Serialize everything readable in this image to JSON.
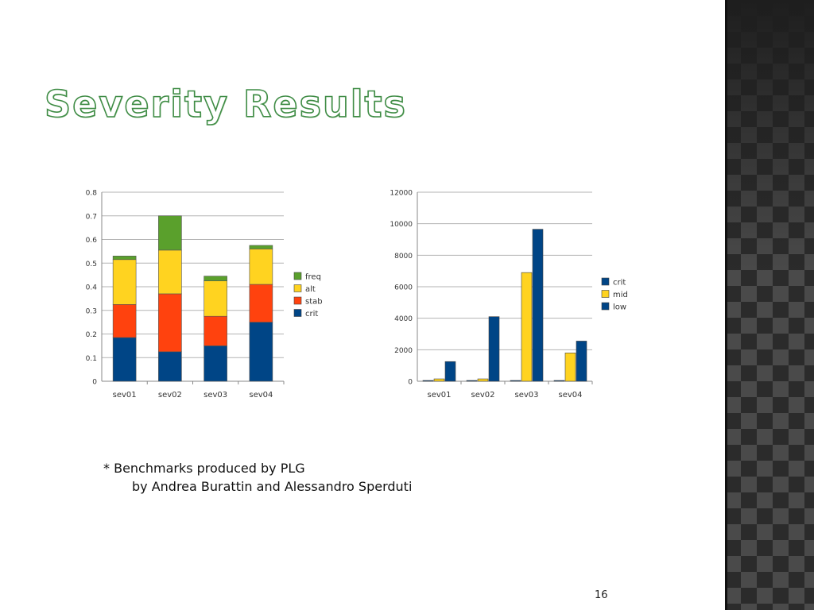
{
  "slide": {
    "title": "Severity Results",
    "footnote_line1": "* Benchmarks produced by PLG",
    "footnote_line2": "by Andrea Burattin and Alessandro Sperduti",
    "page_number": "16"
  },
  "colors": {
    "freq": "#5aa02c",
    "alt": "#ffd320",
    "stab": "#ff420e",
    "crit": "#004586",
    "mid": "#ffd320",
    "low": "#004586",
    "title_outline": "#3f8c45",
    "side_panel": "#2b2b2b"
  },
  "chart_data": [
    {
      "type": "bar",
      "stacked": true,
      "categories": [
        "sev01",
        "sev02",
        "sev03",
        "sev04"
      ],
      "series": [
        {
          "name": "crit",
          "values": [
            0.185,
            0.125,
            0.15,
            0.25
          ]
        },
        {
          "name": "stab",
          "values": [
            0.14,
            0.245,
            0.125,
            0.16
          ]
        },
        {
          "name": "alt",
          "values": [
            0.19,
            0.185,
            0.15,
            0.15
          ]
        },
        {
          "name": "freq",
          "values": [
            0.015,
            0.145,
            0.02,
            0.015
          ]
        }
      ],
      "ylim": [
        0,
        0.8
      ],
      "yticks": [
        "0",
        "0.1",
        "0.2",
        "0.3",
        "0.4",
        "0.5",
        "0.6",
        "0.7",
        "0.8"
      ],
      "legend": [
        "freq",
        "alt",
        "stab",
        "crit"
      ],
      "legend_position": "right",
      "grid": true,
      "title": "",
      "xlabel": "",
      "ylabel": ""
    },
    {
      "type": "bar",
      "stacked": false,
      "categories": [
        "sev01",
        "sev02",
        "sev03",
        "sev04"
      ],
      "series": [
        {
          "name": "crit",
          "values": [
            30,
            30,
            30,
            30
          ]
        },
        {
          "name": "mid",
          "values": [
            150,
            150,
            6900,
            1800
          ]
        },
        {
          "name": "low",
          "values": [
            1250,
            4100,
            9650,
            2550
          ]
        }
      ],
      "ylim": [
        0,
        12000
      ],
      "yticks": [
        "0",
        "2000",
        "4000",
        "6000",
        "8000",
        "10000",
        "12000"
      ],
      "legend": [
        "crit",
        "mid",
        "low"
      ],
      "legend_position": "right",
      "grid": true,
      "title": "",
      "xlabel": "",
      "ylabel": ""
    }
  ]
}
